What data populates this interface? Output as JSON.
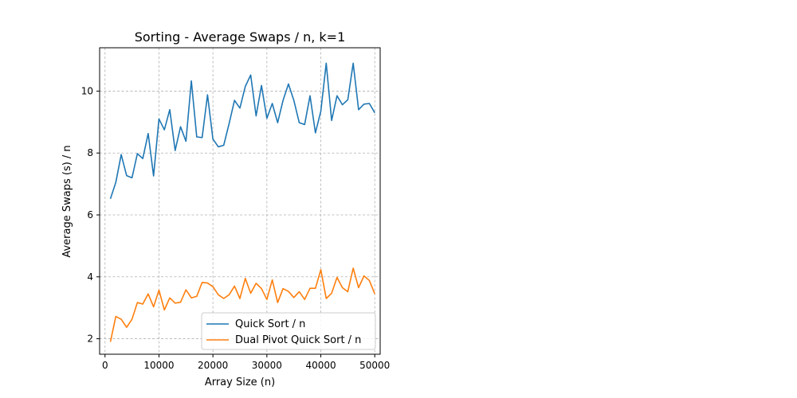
{
  "chart_data": {
    "type": "line",
    "title": "Sorting - Average Swaps / n, k=1",
    "xlabel": "Array Size (n)",
    "ylabel": "Average Swaps (s) / n",
    "xlim": [
      -1000,
      51000
    ],
    "ylim": [
      1.5,
      11.4
    ],
    "xticks": [
      0,
      10000,
      20000,
      30000,
      40000,
      50000
    ],
    "yticks": [
      2,
      4,
      6,
      8,
      10
    ],
    "grid": true,
    "legend_position": "lower-right",
    "x": [
      1000,
      2000,
      3000,
      4000,
      5000,
      6000,
      7000,
      8000,
      9000,
      10000,
      11000,
      12000,
      13000,
      14000,
      15000,
      16000,
      17000,
      18000,
      19000,
      20000,
      21000,
      22000,
      23000,
      24000,
      25000,
      26000,
      27000,
      28000,
      29000,
      30000,
      31000,
      32000,
      33000,
      34000,
      35000,
      36000,
      37000,
      38000,
      39000,
      40000,
      41000,
      42000,
      43000,
      44000,
      45000,
      46000,
      47000,
      48000,
      49000,
      50000
    ],
    "series": [
      {
        "name": "Quick Sort / n",
        "color": "#1f77b4",
        "values": [
          6.52,
          7.05,
          7.95,
          7.27,
          7.2,
          7.98,
          7.82,
          8.63,
          7.26,
          9.1,
          8.75,
          9.4,
          8.08,
          8.85,
          8.38,
          10.33,
          8.52,
          8.5,
          9.88,
          8.45,
          8.2,
          8.25,
          8.95,
          9.7,
          9.45,
          10.15,
          10.52,
          9.2,
          10.18,
          9.12,
          9.6,
          8.98,
          9.7,
          10.23,
          9.7,
          8.98,
          8.92,
          9.85,
          8.65,
          9.35,
          10.9,
          9.05,
          9.85,
          9.56,
          9.72,
          10.9,
          9.4,
          9.58,
          9.6,
          9.3
        ]
      },
      {
        "name": "Dual Pivot Quick Sort / n",
        "color": "#ff7f0e",
        "values": [
          1.9,
          2.72,
          2.63,
          2.37,
          2.63,
          3.17,
          3.12,
          3.45,
          3.03,
          3.57,
          2.93,
          3.32,
          3.15,
          3.18,
          3.58,
          3.32,
          3.37,
          3.82,
          3.8,
          3.68,
          3.42,
          3.3,
          3.42,
          3.7,
          3.3,
          3.95,
          3.47,
          3.79,
          3.62,
          3.27,
          3.9,
          3.17,
          3.62,
          3.53,
          3.33,
          3.52,
          3.27,
          3.63,
          3.63,
          4.23,
          3.3,
          3.47,
          3.98,
          3.65,
          3.52,
          4.28,
          3.65,
          4.03,
          3.88,
          3.45
        ]
      }
    ]
  }
}
